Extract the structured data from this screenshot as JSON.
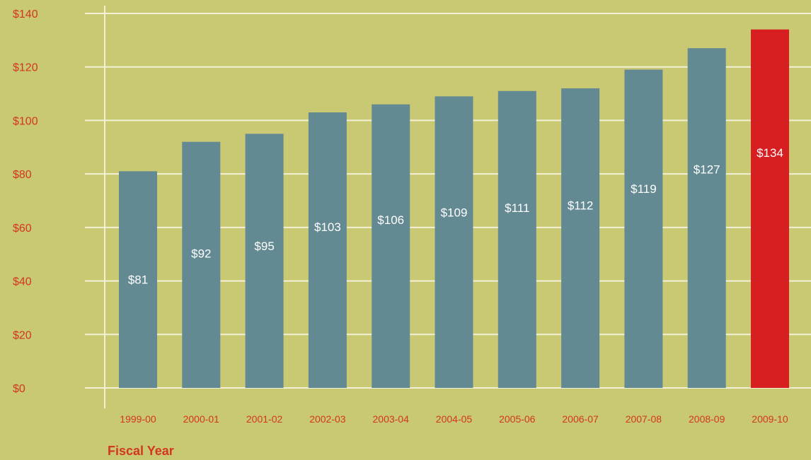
{
  "chart_data": {
    "type": "bar",
    "title": "",
    "xlabel": "Fiscal Year",
    "ylabel": "",
    "categories": [
      "1999-00",
      "2000-01",
      "2001-02",
      "2002-03",
      "2003-04",
      "2004-05",
      "2005-06",
      "2006-07",
      "2007-08",
      "2008-09",
      "2009-10"
    ],
    "values": [
      81,
      92,
      95,
      103,
      106,
      109,
      111,
      112,
      119,
      127,
      134
    ],
    "data_labels": [
      "$81",
      "$92",
      "$95",
      "$103",
      "$106",
      "$109",
      "$111",
      "$112",
      "$119",
      "$127",
      "$134"
    ],
    "highlight_index": 10,
    "ylim": [
      0,
      140
    ],
    "yticks": [
      0,
      20,
      40,
      60,
      80,
      100,
      120,
      140
    ],
    "ytick_labels": [
      "$0",
      "$20",
      "$40",
      "$60",
      "$80",
      "$100",
      "$120",
      "$140"
    ],
    "grid": true,
    "colors": {
      "background": "#c9c873",
      "bar": "#638a93",
      "highlight_bar": "#d71f22",
      "grid": "#f2f0d6",
      "tick_text": "#d2371f",
      "data_label_text": "#ffffff"
    }
  }
}
